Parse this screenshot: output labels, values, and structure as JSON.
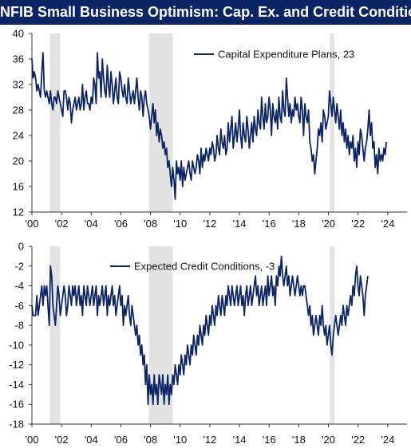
{
  "title": "NFIB Small Business Optimism: Cap. Ex. and Credit Conditions",
  "colors": {
    "title_bg": "#0b2463",
    "title_text": "#ffffff",
    "line": "#0b2463",
    "recession": "#e2e2e2",
    "axis": "#333333"
  },
  "chart_data": [
    {
      "type": "line",
      "legend": "Capital Expenditure Plans, 23",
      "legend_position": "top-center",
      "ylim": [
        12,
        40
      ],
      "yticks": [
        12,
        16,
        20,
        24,
        28,
        32,
        36,
        40
      ],
      "xlim": [
        2000.0,
        2025.3
      ],
      "xticks": [
        2000,
        2002,
        2004,
        2006,
        2008,
        2010,
        2012,
        2014,
        2016,
        2018,
        2020,
        2022,
        2024
      ],
      "xtick_labels": [
        "'00",
        "'02",
        "'04",
        "'06",
        "'08",
        "'10",
        "'12",
        "'14",
        "'16",
        "'18",
        "'20",
        "'22",
        "'24"
      ],
      "grid": false,
      "recessions": [
        [
          2001.2,
          2001.9
        ],
        [
          2007.9,
          2009.5
        ],
        [
          2020.1,
          2020.4
        ]
      ],
      "series": [
        {
          "name": "Capital Expenditure Plans",
          "x_start": 2000.0,
          "step": 0.0833,
          "values": [
            36,
            33,
            34,
            33,
            31,
            32,
            31,
            30,
            34,
            37,
            31,
            30,
            31,
            30,
            29,
            31,
            29,
            28,
            30,
            30,
            29,
            31,
            30,
            29,
            28,
            27,
            31,
            31,
            30,
            28,
            30,
            29,
            26,
            28,
            29,
            30,
            28,
            29,
            30,
            28,
            29,
            32,
            28,
            30,
            31,
            29,
            29,
            28,
            30,
            29,
            33,
            32,
            29,
            37,
            33,
            34,
            30,
            36,
            33,
            31,
            30,
            35,
            32,
            30,
            34,
            32,
            29,
            31,
            33,
            30,
            29,
            34,
            33,
            31,
            30,
            32,
            30,
            29,
            33,
            31,
            29,
            30,
            31,
            29,
            31,
            33,
            30,
            28,
            31,
            30,
            27,
            30,
            31,
            29,
            28,
            27,
            25,
            27,
            29,
            26,
            28,
            24,
            26,
            23,
            25,
            24,
            22,
            23,
            21,
            22,
            19,
            20,
            18,
            16,
            19,
            17,
            14,
            20,
            18,
            19,
            17,
            20,
            16,
            19,
            17,
            18,
            19,
            20,
            18,
            17,
            20,
            19,
            18,
            19,
            21,
            20,
            18,
            22,
            19,
            21,
            20,
            22,
            21,
            20,
            22,
            21,
            23,
            22,
            20,
            21,
            24,
            22,
            21,
            25,
            23,
            22,
            24,
            21,
            22,
            26,
            23,
            25,
            27,
            22,
            24,
            26,
            23,
            25,
            28,
            24,
            22,
            26,
            24,
            23,
            27,
            25,
            22,
            24,
            26,
            23,
            27,
            25,
            24,
            28,
            26,
            25,
            30,
            27,
            25,
            29,
            26,
            27,
            30,
            28,
            24,
            29,
            27,
            26,
            28,
            25,
            30,
            27,
            26,
            31,
            28,
            27,
            33,
            30,
            27,
            29,
            26,
            28,
            27,
            30,
            28,
            29,
            27,
            26,
            30,
            28,
            24,
            29,
            27,
            26,
            28,
            23,
            22,
            20,
            21,
            18,
            20,
            22,
            25,
            24,
            26,
            23,
            28,
            27,
            25,
            26,
            27,
            31,
            29,
            27,
            30,
            28,
            26,
            29,
            27,
            25,
            28,
            24,
            26,
            23,
            25,
            22,
            24,
            21,
            23,
            22,
            24,
            20,
            22,
            19,
            23,
            21,
            25,
            24,
            22,
            20,
            22,
            23,
            25,
            28,
            24,
            26,
            22,
            23,
            19,
            21,
            18,
            22,
            20,
            21,
            20,
            22,
            21,
            23
          ]
        }
      ]
    },
    {
      "type": "line",
      "legend": "Expected Credit Conditions, -3",
      "legend_position": "top-left",
      "ylim": [
        -18,
        0
      ],
      "yticks": [
        -18,
        -16,
        -14,
        -12,
        -10,
        -8,
        -6,
        -4,
        -2,
        0
      ],
      "xlim": [
        2000.0,
        2025.3
      ],
      "xticks": [
        2000,
        2002,
        2004,
        2006,
        2008,
        2010,
        2012,
        2014,
        2016,
        2018,
        2020,
        2022,
        2024
      ],
      "xtick_labels": [
        "'00",
        "'02",
        "'04",
        "'06",
        "'08",
        "'10",
        "'12",
        "'14",
        "'16",
        "'18",
        "'20",
        "'22",
        "'24"
      ],
      "grid": false,
      "recessions": [
        [
          2001.2,
          2001.9
        ],
        [
          2007.9,
          2009.5
        ],
        [
          2020.1,
          2020.4
        ]
      ],
      "series": [
        {
          "name": "Expected Credit Conditions",
          "x_start": 2000.0,
          "step": 0.0833,
          "values": [
            -6,
            -7,
            -7,
            -7,
            -5,
            -7,
            -6,
            -5,
            -4,
            -6,
            -4,
            -5,
            -4,
            -6,
            -8,
            -2,
            -3,
            -6,
            -7,
            -8,
            -6,
            -4,
            -5,
            -7,
            -6,
            -5,
            -4,
            -5,
            -7,
            -6,
            -4,
            -5,
            -6,
            -4,
            -5,
            -4,
            -6,
            -5,
            -4,
            -6,
            -5,
            -7,
            -4,
            -5,
            -6,
            -4,
            -5,
            -6,
            -5,
            -4,
            -6,
            -5,
            -4,
            -7,
            -5,
            -6,
            -5,
            -4,
            -6,
            -5,
            -4,
            -7,
            -5,
            -6,
            -5,
            -4,
            -6,
            -5,
            -7,
            -6,
            -5,
            -4,
            -6,
            -5,
            -8,
            -6,
            -7,
            -6,
            -5,
            -7,
            -8,
            -6,
            -7,
            -8,
            -9,
            -8,
            -10,
            -9,
            -11,
            -10,
            -12,
            -11,
            -14,
            -12,
            -16,
            -13,
            -15,
            -14,
            -16,
            -13,
            -15,
            -14,
            -16,
            -13,
            -14,
            -15,
            -13,
            -16,
            -14,
            -15,
            -13,
            -16,
            -14,
            -15,
            -13,
            -14,
            -12,
            -13,
            -14,
            -12,
            -13,
            -11,
            -12,
            -13,
            -11,
            -12,
            -10,
            -11,
            -12,
            -10,
            -11,
            -9,
            -10,
            -11,
            -9,
            -10,
            -8,
            -9,
            -10,
            -8,
            -9,
            -7,
            -8,
            -9,
            -7,
            -8,
            -6,
            -7,
            -8,
            -6,
            -7,
            -5,
            -6,
            -7,
            -5,
            -6,
            -7,
            -5,
            -6,
            -4,
            -5,
            -6,
            -4,
            -5,
            -6,
            -5,
            -4,
            -6,
            -5,
            -4,
            -6,
            -5,
            -7,
            -5,
            -4,
            -6,
            -5,
            -4,
            -6,
            -5,
            -4,
            -3,
            -5,
            -4,
            -6,
            -5,
            -4,
            -6,
            -5,
            -4,
            -6,
            -3,
            -5,
            -4,
            -3,
            -5,
            -4,
            -6,
            -3,
            -4,
            -2,
            -3,
            -1,
            -3,
            -4,
            -3,
            -2,
            -4,
            -3,
            -5,
            -4,
            -3,
            -4,
            -5,
            -4,
            -3,
            -4,
            -5,
            -4,
            -5,
            -4,
            -4,
            -5,
            -6,
            -7,
            -6,
            -8,
            -7,
            -9,
            -8,
            -7,
            -8,
            -9,
            -7,
            -8,
            -6,
            -8,
            -9,
            -8,
            -10,
            -9,
            -8,
            -10,
            -11,
            -9,
            -8,
            -7,
            -8,
            -9,
            -8,
            -7,
            -8,
            -6,
            -7,
            -8,
            -6,
            -7,
            -6,
            -5,
            -6,
            -4,
            -5,
            -3,
            -2,
            -4,
            -5,
            -3,
            -4,
            -5,
            -7,
            -5,
            -4,
            -3
          ]
        }
      ]
    }
  ]
}
